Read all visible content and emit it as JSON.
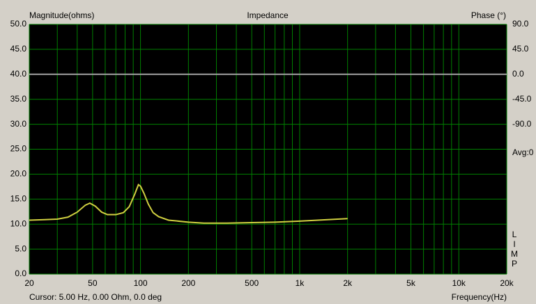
{
  "chart_data": {
    "type": "line",
    "title": "Impedance",
    "y_label": "Magnitude(ohms)",
    "y2_label": "Phase (°)",
    "x_label": "Frequency(Hz)",
    "cursor": "Cursor: 5.00 Hz, 0.00 Ohm, 0.0 deg",
    "average": "Avg:0",
    "program": [
      "L",
      "I",
      "M",
      "P"
    ],
    "log_x": true,
    "grid": true,
    "grid_color": "#008000",
    "xlim": [
      20,
      20000
    ],
    "xticks": [
      20,
      50,
      100,
      200,
      500,
      {
        "value": 1000,
        "label": "1k"
      },
      {
        "value": 2000,
        "label": "2k"
      },
      {
        "value": 5000,
        "label": "5k"
      },
      {
        "value": 10000,
        "label": "10k"
      },
      {
        "value": 20000,
        "label": "20k"
      }
    ],
    "xgrid": [
      30,
      40,
      60,
      70,
      80,
      90,
      300,
      400,
      600,
      700,
      800,
      900,
      3000,
      4000,
      6000,
      7000,
      8000,
      9000
    ],
    "ylim": [
      0,
      50
    ],
    "yticks": [
      {
        "value": 0,
        "label": "0.0"
      },
      {
        "value": 5,
        "label": "5.0"
      },
      {
        "value": 10,
        "label": "10.0"
      },
      {
        "value": 15,
        "label": "15.0"
      },
      {
        "value": 20,
        "label": "20.0"
      },
      {
        "value": 25,
        "label": "25.0"
      },
      {
        "value": 30,
        "label": "30.0"
      },
      {
        "value": 35,
        "label": "35.0"
      },
      {
        "value": 40,
        "label": "40.0"
      },
      {
        "value": 45,
        "label": "45.0"
      },
      {
        "value": 50,
        "label": "50.0"
      }
    ],
    "y2lim": [
      -360,
      90
    ],
    "y2ticks": [
      {
        "value": 90,
        "label": "90.0"
      },
      {
        "value": 45,
        "label": "45.0"
      },
      {
        "value": 0,
        "label": "0.0"
      },
      {
        "value": -45,
        "label": "-45.0"
      },
      {
        "value": -90,
        "label": "-90.0"
      }
    ],
    "zero_phase_color": "#a0a0a0",
    "x": [
      20,
      25,
      30,
      35,
      40,
      45,
      48,
      52,
      57,
      62,
      70,
      78,
      85,
      92,
      97,
      100,
      105,
      112,
      120,
      130,
      150,
      200,
      250,
      300,
      350,
      500,
      700,
      1000,
      1500,
      2000
    ],
    "series": [
      {
        "color": "#d0d040",
        "values": [
          10.8,
          10.9,
          11.0,
          11.4,
          12.4,
          13.8,
          14.2,
          13.6,
          12.4,
          11.9,
          11.9,
          12.3,
          13.5,
          16.0,
          17.9,
          17.6,
          16.2,
          14.0,
          12.3,
          11.5,
          10.8,
          10.4,
          10.2,
          10.2,
          10.2,
          10.3,
          10.4,
          10.6,
          10.9,
          11.1
        ]
      }
    ]
  }
}
